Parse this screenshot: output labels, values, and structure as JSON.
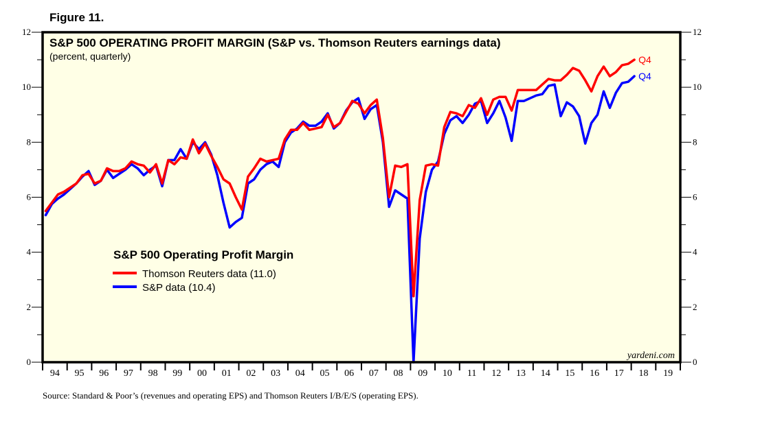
{
  "figure_label": "Figure 11.",
  "source": "Source: Standard & Poor’s (revenues and operating EPS) and Thomson Reuters I/B/E/S (operating EPS).",
  "chart_data": {
    "type": "line",
    "title": "S&P 500 OPERATING PROFIT MARGIN (S&P  vs. Thomson Reuters earnings data)",
    "subtitle": "(percent, quarterly)",
    "credit": "yardeni.com",
    "xlabel": "",
    "ylabel": "",
    "ylim": [
      0,
      12
    ],
    "yticks": [
      0,
      2,
      4,
      6,
      8,
      10,
      12
    ],
    "yticks_labels": [
      "0",
      "2",
      "4",
      "6",
      "8",
      "10",
      "12"
    ],
    "xlim": [
      1994,
      2020
    ],
    "xtick_labels": [
      "94",
      "95",
      "96",
      "97",
      "98",
      "99",
      "00",
      "01",
      "02",
      "03",
      "04",
      "05",
      "06",
      "07",
      "08",
      "09",
      "10",
      "11",
      "12",
      "13",
      "14",
      "15",
      "16",
      "17",
      "18",
      "19"
    ],
    "grid": false,
    "background": "#ffffe6",
    "legend": {
      "title": "S&P 500 Operating Profit Margin",
      "placement": "center-left",
      "entries": [
        {
          "label": "Thomson Reuters data (11.0)",
          "color": "#ff0000"
        },
        {
          "label": "S&P data (10.4)",
          "color": "#0000ff"
        }
      ]
    },
    "x_start": 1994.0,
    "x_step": 0.25,
    "series": [
      {
        "name": "Thomson Reuters data",
        "color": "#ff0000",
        "end_label": "Q4",
        "values": [
          5.5,
          5.8,
          6.1,
          6.2,
          6.35,
          6.5,
          6.8,
          6.85,
          6.5,
          6.6,
          7.05,
          6.95,
          6.95,
          7.05,
          7.3,
          7.2,
          7.15,
          6.9,
          7.2,
          6.5,
          7.35,
          7.2,
          7.45,
          7.4,
          8.1,
          7.6,
          7.95,
          7.5,
          7.1,
          6.65,
          6.5,
          6.0,
          5.55,
          6.75,
          7.05,
          7.4,
          7.3,
          7.35,
          7.4,
          8.1,
          8.45,
          8.45,
          8.7,
          8.45,
          8.5,
          8.55,
          9.0,
          8.55,
          8.7,
          9.1,
          9.5,
          9.4,
          9.05,
          9.35,
          9.55,
          8.15,
          6.0,
          7.15,
          7.1,
          7.2,
          2.4,
          5.9,
          7.15,
          7.2,
          7.15,
          8.55,
          9.1,
          9.05,
          8.95,
          9.35,
          9.25,
          9.6,
          9.0,
          9.55,
          9.65,
          9.65,
          9.15,
          9.9,
          9.9,
          9.9,
          9.9,
          10.1,
          10.3,
          10.25,
          10.25,
          10.45,
          10.7,
          10.6,
          10.25,
          9.85,
          10.4,
          10.75,
          10.4,
          10.55,
          10.8,
          10.85,
          11.0
        ]
      },
      {
        "name": "S&P data",
        "color": "#0000ff",
        "end_label": "Q4",
        "values": [
          5.35,
          5.75,
          5.95,
          6.1,
          6.3,
          6.5,
          6.75,
          6.95,
          6.45,
          6.6,
          7.0,
          6.7,
          6.85,
          7.0,
          7.2,
          7.05,
          6.8,
          7.0,
          7.15,
          6.4,
          7.35,
          7.35,
          7.75,
          7.4,
          8.0,
          7.75,
          8.0,
          7.55,
          6.8,
          5.8,
          4.9,
          5.1,
          5.25,
          6.5,
          6.65,
          7.0,
          7.2,
          7.3,
          7.1,
          8.0,
          8.35,
          8.5,
          8.75,
          8.6,
          8.6,
          8.75,
          9.05,
          8.5,
          8.7,
          9.15,
          9.45,
          9.6,
          8.85,
          9.2,
          9.35,
          8.0,
          5.65,
          6.25,
          6.1,
          5.95,
          0.0,
          4.5,
          6.2,
          7.0,
          7.3,
          8.3,
          8.8,
          8.95,
          8.7,
          9.0,
          9.4,
          9.5,
          8.7,
          9.05,
          9.5,
          8.9,
          8.05,
          9.5,
          9.5,
          9.6,
          9.7,
          9.75,
          10.05,
          10.1,
          8.95,
          9.45,
          9.3,
          8.95,
          7.95,
          8.7,
          9.0,
          9.85,
          9.25,
          9.8,
          10.15,
          10.2,
          10.4
        ]
      }
    ]
  }
}
